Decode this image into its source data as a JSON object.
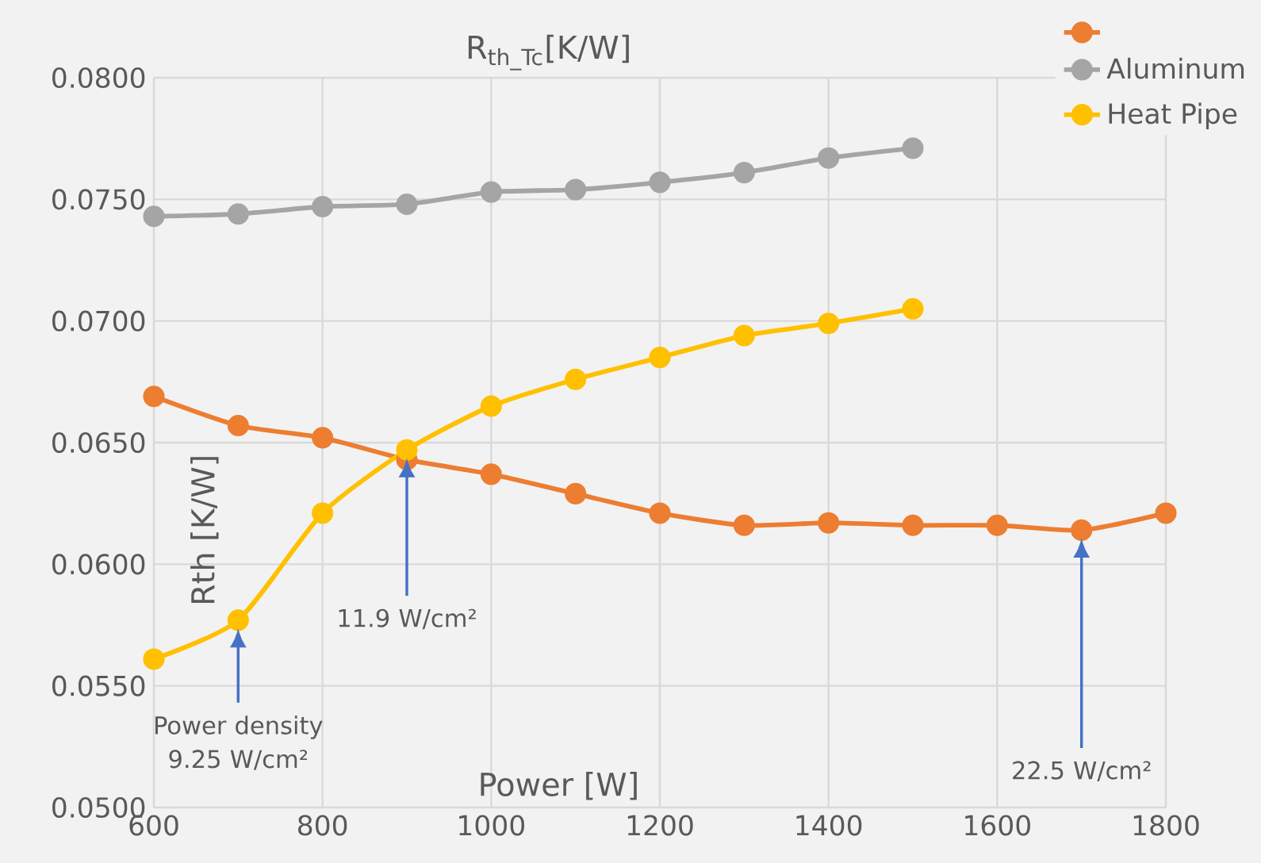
{
  "chart_data": {
    "type": "line",
    "title": "R$_{th_Tc}$[K/W]",
    "xlabel": "Power [W]",
    "ylabel": "Rth [K/W]",
    "x": [
      600,
      700,
      800,
      900,
      1000,
      1100,
      1200,
      1300,
      1400,
      1500,
      1600,
      1700,
      1800
    ],
    "series": [
      {
        "color": "#ed7d31",
        "values": [
          0.0669,
          0.0657,
          0.0652,
          0.0643,
          0.0637,
          0.0629,
          0.0621,
          0.0616,
          0.0617,
          0.0616,
          0.0616,
          0.0614,
          0.0621
        ]
      },
      {
        "name": "Aluminum",
        "color": "#a5a5a5",
        "values": [
          0.0743,
          0.0744,
          0.0747,
          0.0748,
          0.0753,
          0.0754,
          0.0757,
          0.0761,
          0.0767,
          0.0771,
          null,
          null,
          null
        ]
      },
      {
        "name": "Heat Pipe",
        "color": "#ffc000",
        "values": [
          0.0561,
          0.0577,
          0.0621,
          0.0647,
          0.0665,
          0.0676,
          0.0685,
          0.0694,
          0.0699,
          0.0705,
          null,
          null,
          null
        ]
      }
    ],
    "xlim": [
      600,
      1800
    ],
    "xticks": [
      600,
      800,
      1000,
      1200,
      1400,
      1600,
      1800
    ],
    "ylim": [
      0.05,
      0.08
    ],
    "yticks": [
      {
        "value": 0.05,
        "label": "0.0500"
      },
      {
        "value": 0.055,
        "label": "0.0550"
      },
      {
        "value": 0.06,
        "label": "0.0600"
      },
      {
        "value": 0.065,
        "label": "0.0650"
      },
      {
        "value": 0.07,
        "label": "0.0700"
      },
      {
        "value": 0.075,
        "label": "0.0750"
      },
      {
        "value": 0.08,
        "label": "0.0800"
      }
    ],
    "grid": true,
    "legend": "top right",
    "marker": "circle",
    "line_style": "solid",
    "annotations": [
      "Power density 9.25 W/cm²",
      "11.9 W/cm²",
      "22.5 W/cm²"
    ]
  }
}
